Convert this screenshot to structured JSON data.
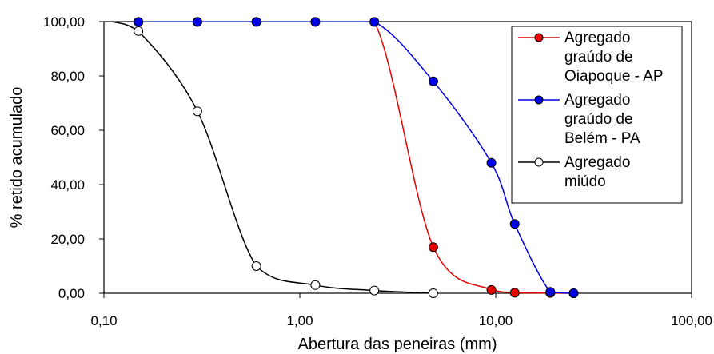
{
  "chart_data": {
    "type": "line",
    "xlabel": "Abertura das peneiras (mm)",
    "ylabel": "% retido acumulado",
    "xscale": "log",
    "xlim": [
      0.1,
      100
    ],
    "ylim": [
      0,
      100
    ],
    "x_ticks": [
      "0,10",
      "1,00",
      "10,00",
      "100,00"
    ],
    "y_ticks": [
      "0,00",
      "20,00",
      "40,00",
      "60,00",
      "80,00",
      "100,00"
    ],
    "grid": false,
    "legend_position": "right",
    "series": [
      {
        "name_lines": [
          "Agregado",
          "graúdo de",
          "Oiapoque - AP"
        ],
        "color": "#e60000",
        "marker": "filled",
        "x": [
          0.15,
          0.3,
          0.6,
          1.2,
          2.4,
          4.8,
          9.5,
          12.5,
          19,
          25
        ],
        "y": [
          99.9,
          99.9,
          99.9,
          99.9,
          99.9,
          17.0,
          1.2,
          0.2,
          0.1,
          0.0
        ]
      },
      {
        "name_lines": [
          "Agregado",
          "graúdo de",
          "Belém - PA"
        ],
        "color": "#0000e6",
        "marker": "filled",
        "x": [
          0.15,
          0.3,
          0.6,
          1.2,
          2.4,
          4.8,
          9.5,
          12.5,
          19,
          25
        ],
        "y": [
          99.9,
          99.9,
          99.9,
          99.9,
          99.9,
          78.0,
          48.0,
          25.5,
          0.5,
          0.0
        ]
      },
      {
        "name_lines": [
          "Agregado",
          "miúdo"
        ],
        "color": "#000000",
        "marker": "open",
        "x": [
          0.15,
          0.3,
          0.6,
          1.2,
          2.4,
          4.8
        ],
        "y": [
          96.5,
          67.0,
          10.0,
          3.0,
          1.0,
          0.0
        ]
      }
    ]
  }
}
